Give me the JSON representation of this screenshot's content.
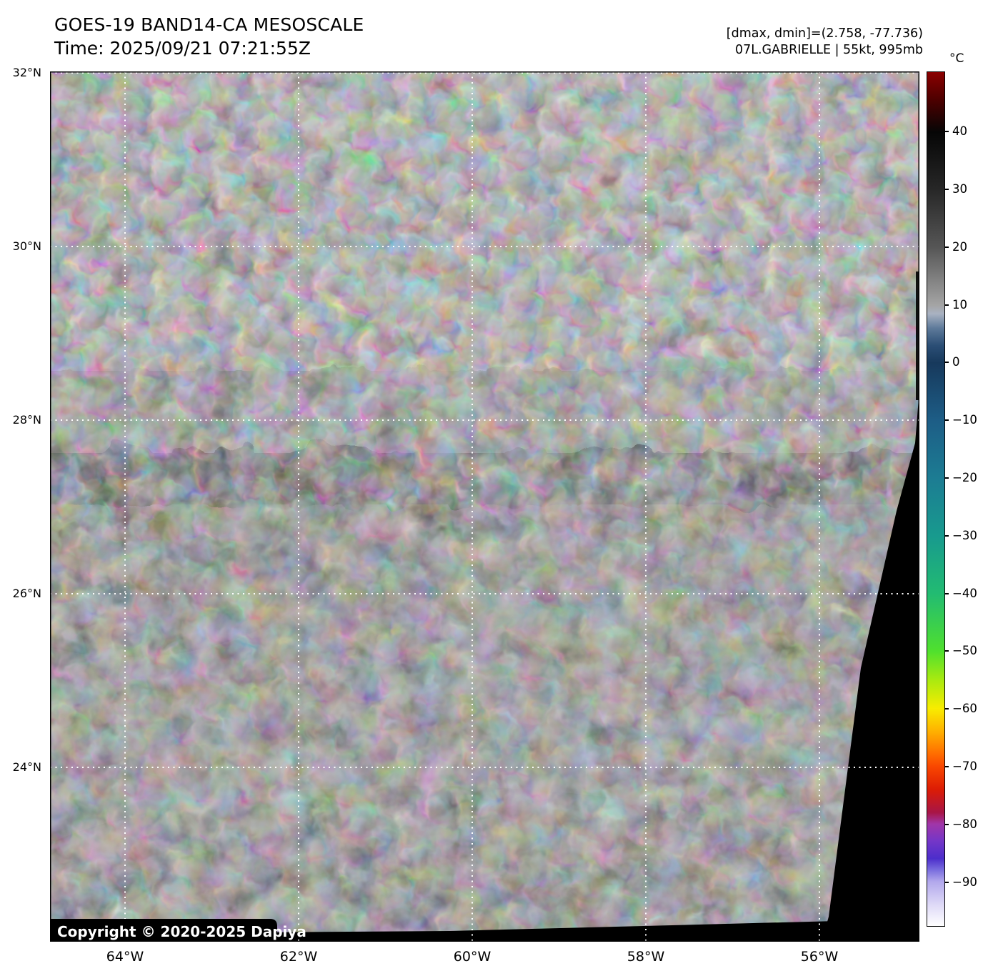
{
  "header": {
    "title": "GOES-19 BAND14-CA MESOSCALE",
    "time_line": "Time: 2025/09/21 07:21:55Z",
    "annotation_line1": "[dmax, dmin]=(2.758, -77.736)",
    "annotation_line2": "07L.GABRIELLE | 55kt, 995mb"
  },
  "map": {
    "copyright": "Copyright © 2020-2025 Dapiya",
    "lat_ticks": [
      {
        "deg": 32,
        "label": "32°N"
      },
      {
        "deg": 30,
        "label": "30°N"
      },
      {
        "deg": 28,
        "label": "28°N"
      },
      {
        "deg": 26,
        "label": "26°N"
      },
      {
        "deg": 24,
        "label": "24°N"
      }
    ],
    "lon_ticks": [
      {
        "deg": 64,
        "label": "64°W"
      },
      {
        "deg": 62,
        "label": "62°W"
      },
      {
        "deg": 60,
        "label": "60°W"
      },
      {
        "deg": 58,
        "label": "58°W"
      },
      {
        "deg": 56,
        "label": "56°W"
      }
    ],
    "gridline_color": "#ffffff"
  },
  "colorbar": {
    "unit_label": "°C",
    "value_max": 50.4,
    "value_min": -97.7,
    "tick_values": [
      40,
      30,
      20,
      10,
      0,
      -10,
      -20,
      -30,
      -40,
      -50,
      -60,
      -70,
      -80,
      -90
    ],
    "tick_labels": [
      "40",
      "30",
      "20",
      "10",
      "0",
      "−10",
      "−20",
      "−30",
      "−40",
      "−50",
      "−60",
      "−70",
      "−80",
      "−90"
    ],
    "gradient_stops": [
      {
        "v": 50.4,
        "color": "#8b0000"
      },
      {
        "v": 46.0,
        "color": "#520000"
      },
      {
        "v": 40.0,
        "color": "#060606"
      },
      {
        "v": 30.0,
        "color": "#272727"
      },
      {
        "v": 20.0,
        "color": "#565656"
      },
      {
        "v": 10.0,
        "color": "#a4a4a4"
      },
      {
        "v": 8.5,
        "color": "#a9b2c2"
      },
      {
        "v": 6.0,
        "color": "#5e7a9a"
      },
      {
        "v": 3.0,
        "color": "#2b4e75"
      },
      {
        "v": 0.0,
        "color": "#17395c"
      },
      {
        "v": -10.0,
        "color": "#1d5d86"
      },
      {
        "v": -20.0,
        "color": "#1c7c93"
      },
      {
        "v": -30.0,
        "color": "#189a8e"
      },
      {
        "v": -40.0,
        "color": "#22bb72"
      },
      {
        "v": -50.0,
        "color": "#4fe02e"
      },
      {
        "v": -55.0,
        "color": "#a9ea10"
      },
      {
        "v": -60.0,
        "color": "#f8ec00"
      },
      {
        "v": -64.0,
        "color": "#ffb000"
      },
      {
        "v": -68.0,
        "color": "#ff6a00"
      },
      {
        "v": -70.0,
        "color": "#f94700"
      },
      {
        "v": -74.0,
        "color": "#dc1c04"
      },
      {
        "v": -78.0,
        "color": "#a81546"
      },
      {
        "v": -80.0,
        "color": "#a136a8"
      },
      {
        "v": -83.0,
        "color": "#7436c8"
      },
      {
        "v": -86.0,
        "color": "#4c2ecb"
      },
      {
        "v": -88.0,
        "color": "#7a6ede"
      },
      {
        "v": -90.0,
        "color": "#b2a8ec"
      },
      {
        "v": -94.0,
        "color": "#ded9f7"
      },
      {
        "v": -97.7,
        "color": "#ffffff"
      }
    ]
  }
}
